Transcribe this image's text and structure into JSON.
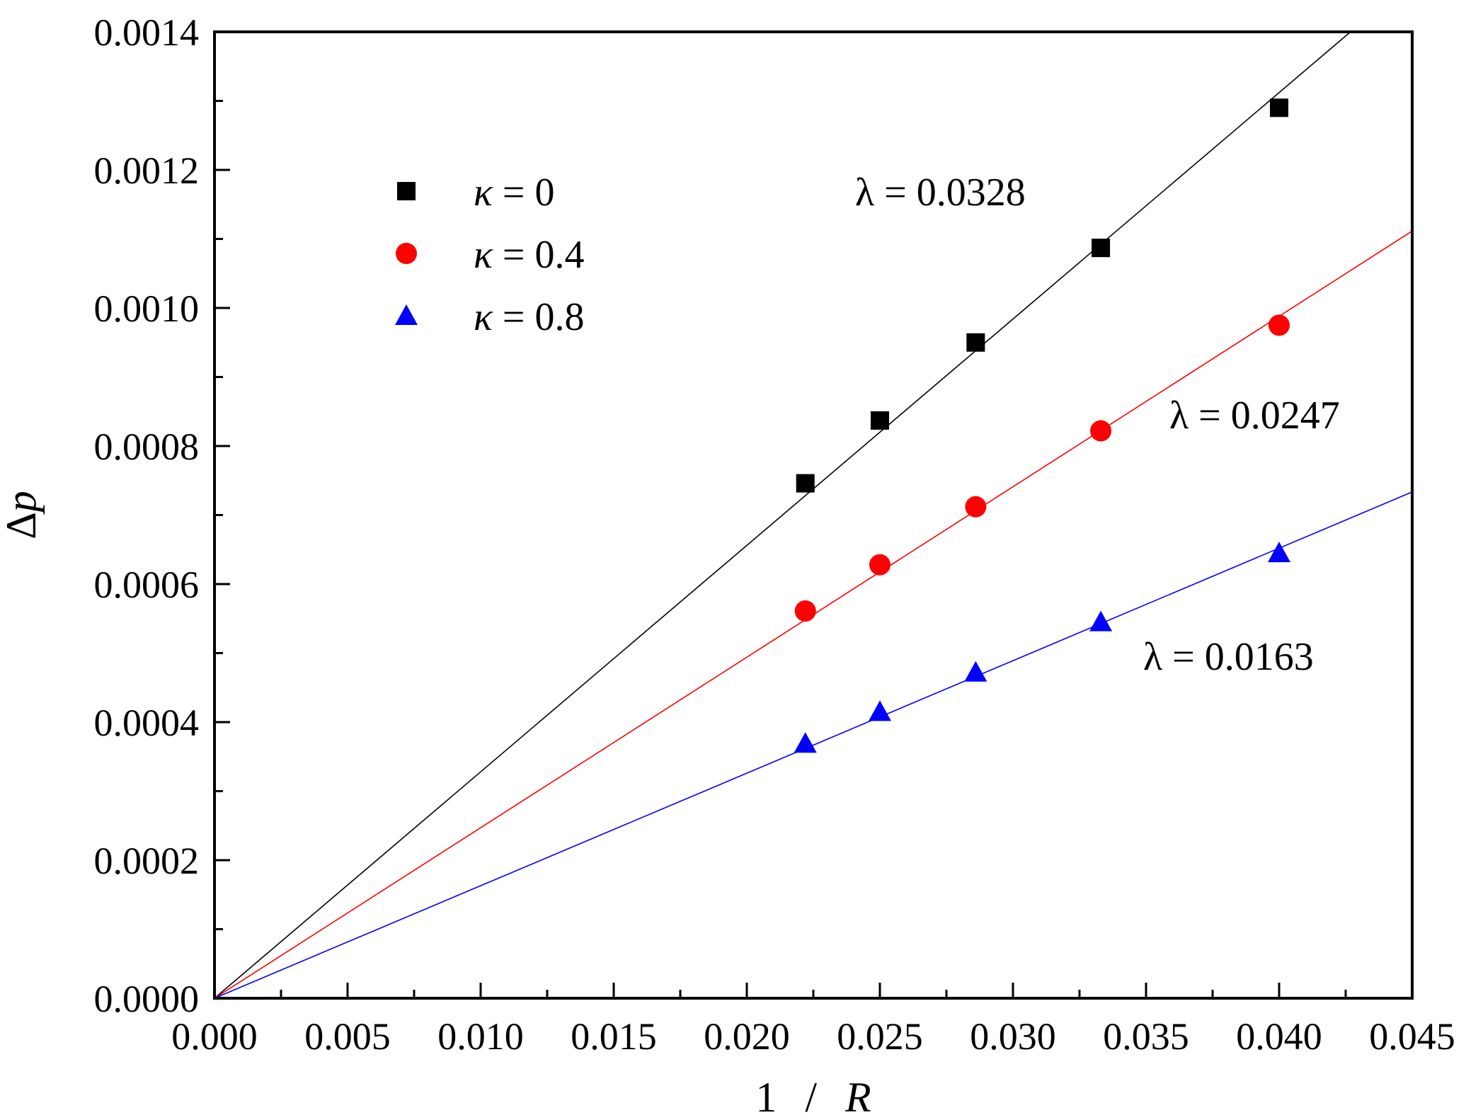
{
  "chart_data": {
    "type": "scatter",
    "title": "",
    "xlabel_parts": [
      "1",
      "/",
      "R"
    ],
    "ylabel_parts": [
      "Δ",
      "p"
    ],
    "xlim": [
      0,
      0.045
    ],
    "ylim": [
      0,
      0.0014
    ],
    "x_ticks": [
      "0.000",
      "0.005",
      "0.010",
      "0.015",
      "0.020",
      "0.025",
      "0.030",
      "0.035",
      "0.040",
      "0.045"
    ],
    "y_ticks": [
      "0.0000",
      "0.0002",
      "0.0004",
      "0.0006",
      "0.0008",
      "0.0010",
      "0.0012",
      "0.0014"
    ],
    "x": [
      0.0222,
      0.025,
      0.0286,
      0.0333,
      0.04
    ],
    "series": [
      {
        "name": "κ = 0",
        "legend_symbol": "κ",
        "legend_value": "= 0",
        "marker": "square",
        "color": "#000000",
        "values": [
          0.000746,
          0.000837,
          0.00095,
          0.001087,
          0.00129
        ],
        "fit_slope": 0.0328,
        "annotation_symbol": "λ",
        "annotation_value": "= 0.0328"
      },
      {
        "name": "κ = 0.4",
        "legend_symbol": "κ",
        "legend_value": "= 0.4",
        "marker": "circle",
        "color": "#ff0000",
        "values": [
          0.000561,
          0.000628,
          0.000712,
          0.000822,
          0.000975
        ],
        "fit_slope": 0.0247,
        "annotation_symbol": "λ",
        "annotation_value": "= 0.0247"
      },
      {
        "name": "κ = 0.8",
        "legend_symbol": "κ",
        "legend_value": "= 0.8",
        "marker": "triangle",
        "color": "#0000ff",
        "values": [
          0.000369,
          0.000415,
          0.000472,
          0.000545,
          0.000645
        ],
        "fit_slope": 0.0163,
        "annotation_symbol": "λ",
        "annotation_value": "= 0.0163"
      }
    ],
    "legend_position": "top-left",
    "grid": false
  }
}
